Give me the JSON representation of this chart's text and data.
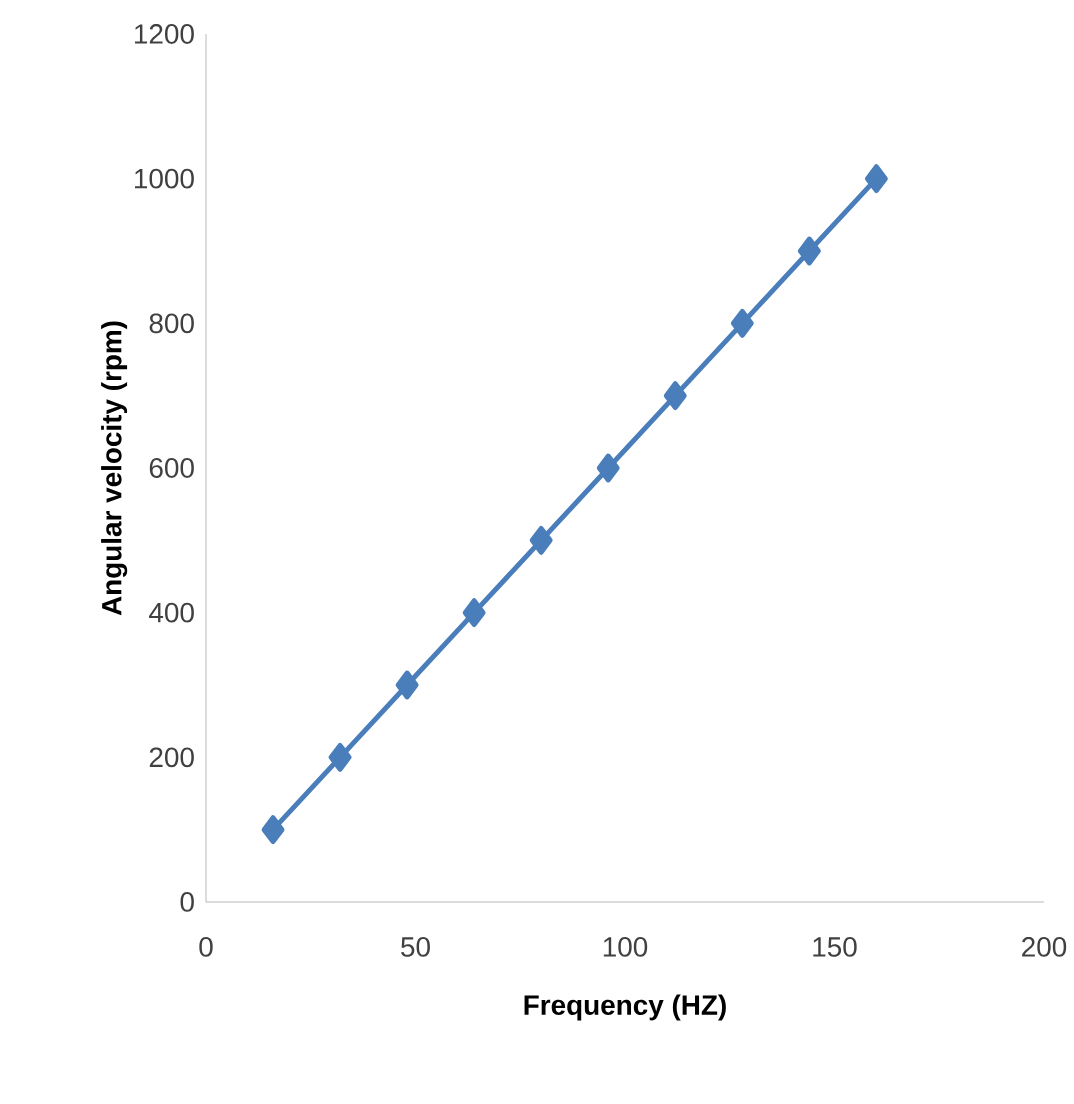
{
  "chart_data": {
    "type": "line",
    "xlabel": "Frequency (HZ)",
    "ylabel": "Angular velocity (rpm)",
    "x": [
      16,
      32,
      48,
      64,
      80,
      96,
      112,
      128,
      144,
      160
    ],
    "series": [
      {
        "color": "#4a7ebb",
        "values": [
          100,
          200,
          300,
          400,
          500,
          600,
          700,
          800,
          900,
          1000
        ]
      }
    ],
    "xlim": [
      0,
      200
    ],
    "ylim": [
      0,
      1200
    ],
    "xticks": [
      0,
      50,
      100,
      150,
      200
    ],
    "yticks": [
      0,
      200,
      400,
      600,
      800,
      1000,
      1200
    ],
    "marker": "diamond",
    "line_style": "solid",
    "grid": false,
    "legend": false
  }
}
